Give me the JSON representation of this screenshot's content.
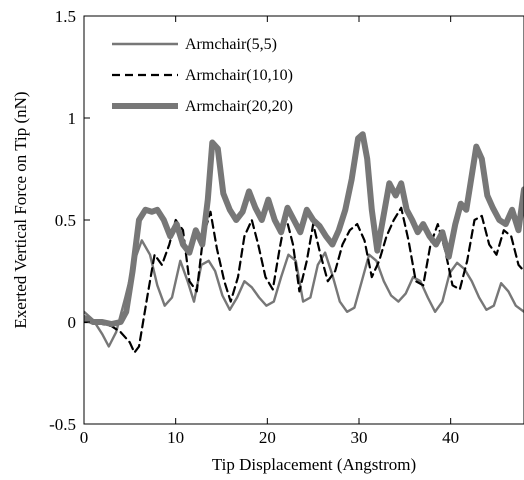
{
  "chart_data": {
    "type": "line",
    "title": "",
    "xlabel": "Tip Displacement (Angstrom)",
    "ylabel": "Exerted Vertical Force on Tip (nN)",
    "xlim": [
      0,
      48
    ],
    "ylim": [
      -0.5,
      1.5
    ],
    "xticks": [
      0,
      10,
      20,
      30,
      40
    ],
    "yticks": [
      -0.5,
      0,
      0.5,
      1,
      1.5
    ],
    "xtick_labels": [
      "0",
      "10",
      "20",
      "30",
      "40"
    ],
    "ytick_labels": [
      "-0.5",
      "0",
      "0.5",
      "1",
      "1.5"
    ],
    "grid": false,
    "legend_position": "top-left",
    "series": [
      {
        "name": "Armchair(5,5)",
        "style": "solid",
        "color": "#777777",
        "x": [
          0,
          1,
          2,
          2.7,
          3.5,
          4.5,
          5.5,
          6.3,
          7.2,
          8,
          8.8,
          9.6,
          10.5,
          11.3,
          12,
          12.8,
          13.6,
          14.3,
          15.1,
          15.9,
          16.7,
          17.5,
          18.3,
          19.1,
          19.9,
          20.7,
          21.5,
          22.3,
          23.1,
          23.9,
          24.7,
          25.5,
          26.3,
          27.1,
          27.9,
          28.7,
          29.5,
          30.3,
          31.1,
          31.9,
          32.7,
          33.5,
          34.3,
          35.1,
          35.9,
          36.7,
          37.5,
          38.3,
          39.1,
          39.9,
          40.7,
          41.5,
          42.3,
          43.1,
          43.9,
          44.7,
          45.5,
          46.3,
          47.1,
          48
        ],
        "y": [
          0.05,
          0.01,
          -0.06,
          -0.12,
          -0.05,
          0.12,
          0.3,
          0.4,
          0.33,
          0.18,
          0.08,
          0.12,
          0.3,
          0.2,
          0.1,
          0.28,
          0.3,
          0.25,
          0.13,
          0.06,
          0.12,
          0.2,
          0.17,
          0.12,
          0.08,
          0.1,
          0.22,
          0.33,
          0.3,
          0.1,
          0.12,
          0.28,
          0.34,
          0.23,
          0.1,
          0.05,
          0.07,
          0.2,
          0.33,
          0.3,
          0.2,
          0.13,
          0.1,
          0.14,
          0.22,
          0.2,
          0.12,
          0.05,
          0.1,
          0.24,
          0.29,
          0.26,
          0.2,
          0.12,
          0.06,
          0.08,
          0.19,
          0.15,
          0.08,
          0.05
        ]
      },
      {
        "name": "Armchair(10,10)",
        "style": "dashed",
        "color": "#000000",
        "x": [
          0,
          1,
          2,
          3,
          4,
          5,
          5.5,
          6,
          7,
          7.7,
          8.5,
          9.3,
          10,
          10.8,
          11.5,
          12.3,
          13,
          13.8,
          14.5,
          15.3,
          16,
          16.8,
          17.5,
          18.3,
          19,
          19.8,
          20.6,
          21.3,
          22,
          22.8,
          23.5,
          24.3,
          25,
          25.8,
          26.6,
          27.4,
          28.2,
          29,
          29.8,
          30.6,
          31.4,
          32.2,
          33,
          33.8,
          34.6,
          35.4,
          36.2,
          37,
          37.8,
          38.6,
          39.4,
          40.2,
          41,
          41.8,
          42.6,
          43.4,
          44.2,
          45,
          45.8,
          46.6,
          47.4,
          48
        ],
        "y": [
          0,
          0,
          -0.01,
          -0.02,
          -0.05,
          -0.1,
          -0.15,
          -0.12,
          0.15,
          0.33,
          0.28,
          0.38,
          0.5,
          0.45,
          0.2,
          0.15,
          0.42,
          0.54,
          0.36,
          0.2,
          0.1,
          0.22,
          0.42,
          0.5,
          0.38,
          0.22,
          0.16,
          0.35,
          0.52,
          0.38,
          0.15,
          0.3,
          0.48,
          0.33,
          0.2,
          0.25,
          0.38,
          0.45,
          0.48,
          0.4,
          0.22,
          0.3,
          0.42,
          0.5,
          0.56,
          0.4,
          0.2,
          0.18,
          0.38,
          0.48,
          0.35,
          0.18,
          0.16,
          0.3,
          0.5,
          0.52,
          0.38,
          0.33,
          0.45,
          0.42,
          0.28,
          0.25
        ]
      },
      {
        "name": "Armchair(20,20)",
        "style": "solid-thick",
        "color": "#777777",
        "x": [
          0,
          1,
          2,
          3,
          4,
          4.6,
          5.3,
          6,
          6.7,
          7.4,
          8,
          8.7,
          9.4,
          10.1,
          10.8,
          11.5,
          12.2,
          12.9,
          13.5,
          14,
          14.6,
          15.2,
          15.9,
          16.6,
          17.3,
          18,
          18.7,
          19.4,
          20.1,
          20.8,
          21.5,
          22.2,
          22.9,
          23.6,
          24.3,
          25,
          25.7,
          26.4,
          27.1,
          27.8,
          28.5,
          29.2,
          29.9,
          30.4,
          30.9,
          31.4,
          32,
          32.6,
          33.3,
          34,
          34.6,
          35.2,
          35.8,
          36.4,
          37,
          37.7,
          38.4,
          39.1,
          39.8,
          40.5,
          41.1,
          41.7,
          42.3,
          42.8,
          43.4,
          44,
          44.6,
          45.3,
          46,
          46.7,
          47.4,
          48
        ],
        "y": [
          0.02,
          0,
          0,
          -0.01,
          0,
          0.05,
          0.25,
          0.5,
          0.55,
          0.54,
          0.55,
          0.5,
          0.42,
          0.48,
          0.38,
          0.34,
          0.45,
          0.38,
          0.6,
          0.88,
          0.85,
          0.63,
          0.55,
          0.5,
          0.54,
          0.64,
          0.56,
          0.5,
          0.6,
          0.5,
          0.44,
          0.56,
          0.5,
          0.44,
          0.55,
          0.5,
          0.47,
          0.42,
          0.38,
          0.45,
          0.55,
          0.7,
          0.9,
          0.92,
          0.8,
          0.55,
          0.35,
          0.5,
          0.68,
          0.62,
          0.68,
          0.55,
          0.5,
          0.44,
          0.48,
          0.42,
          0.38,
          0.44,
          0.32,
          0.48,
          0.58,
          0.55,
          0.72,
          0.86,
          0.8,
          0.62,
          0.56,
          0.5,
          0.48,
          0.55,
          0.45,
          0.65
        ]
      }
    ]
  }
}
